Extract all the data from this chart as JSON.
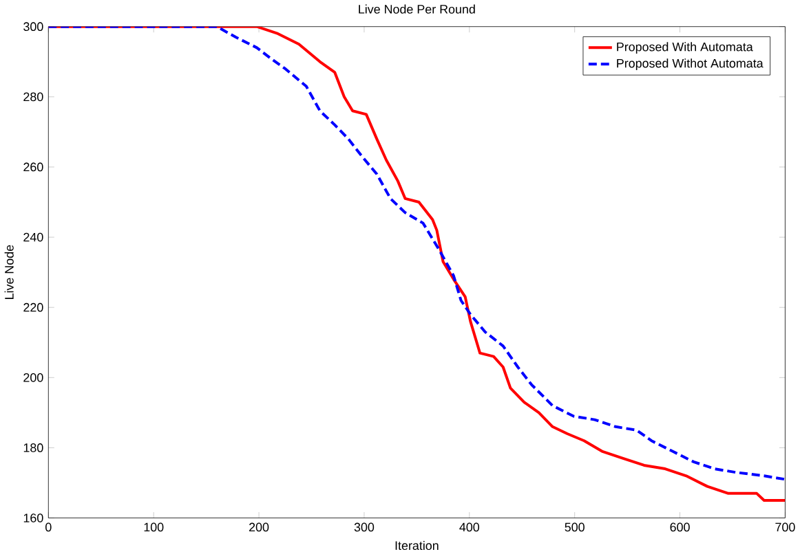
{
  "chart_data": {
    "type": "line",
    "title": "Live Node Per Round",
    "xlabel": "Iteration",
    "ylabel": "Live Node",
    "xlim": [
      0,
      700
    ],
    "ylim": [
      160,
      300
    ],
    "xticks": [
      0,
      100,
      200,
      300,
      400,
      500,
      600,
      700
    ],
    "yticks": [
      160,
      180,
      200,
      220,
      240,
      260,
      280,
      300
    ],
    "legend": "top right",
    "grid": false,
    "marker": "none",
    "series": [
      {
        "name": "Proposed With Automata",
        "color": "#ff0000",
        "line_style": "solid",
        "x": [
          0,
          190,
          198,
          218,
          238,
          258,
          272,
          281,
          289,
          302,
          312,
          321,
          332,
          339,
          352,
          365,
          369,
          375,
          385,
          396,
          401,
          410,
          423,
          432,
          439,
          452,
          466,
          479,
          493,
          509,
          526,
          546,
          566,
          586,
          606,
          626,
          646,
          673,
          680,
          700
        ],
        "values": [
          300,
          300,
          300,
          298,
          295,
          290,
          287,
          280,
          276,
          275,
          268,
          262,
          256,
          251,
          250,
          245,
          242,
          233,
          228,
          223,
          216,
          207,
          206,
          203,
          197,
          193,
          190,
          186,
          184,
          182,
          179,
          177,
          175,
          174,
          172,
          169,
          167,
          167,
          165,
          165
        ]
      },
      {
        "name": "Proposed Withot Automata",
        "color": "#0000ff",
        "line_style": "dashed",
        "x": [
          0,
          155,
          160,
          178,
          198,
          211,
          225,
          245,
          258,
          272,
          285,
          298,
          312,
          325,
          339,
          356,
          372,
          385,
          392,
          401,
          415,
          432,
          446,
          459,
          479,
          499,
          519,
          539,
          559,
          573,
          593,
          613,
          633,
          653,
          680,
          700
        ],
        "values": [
          300,
          300,
          300,
          297,
          294,
          291,
          288,
          283,
          276,
          272,
          268,
          263,
          258,
          251,
          247,
          244,
          236,
          229,
          222,
          218,
          213,
          209,
          203,
          198,
          192,
          189,
          188,
          186,
          185,
          182,
          179,
          176,
          174,
          173,
          172,
          171
        ]
      }
    ]
  }
}
